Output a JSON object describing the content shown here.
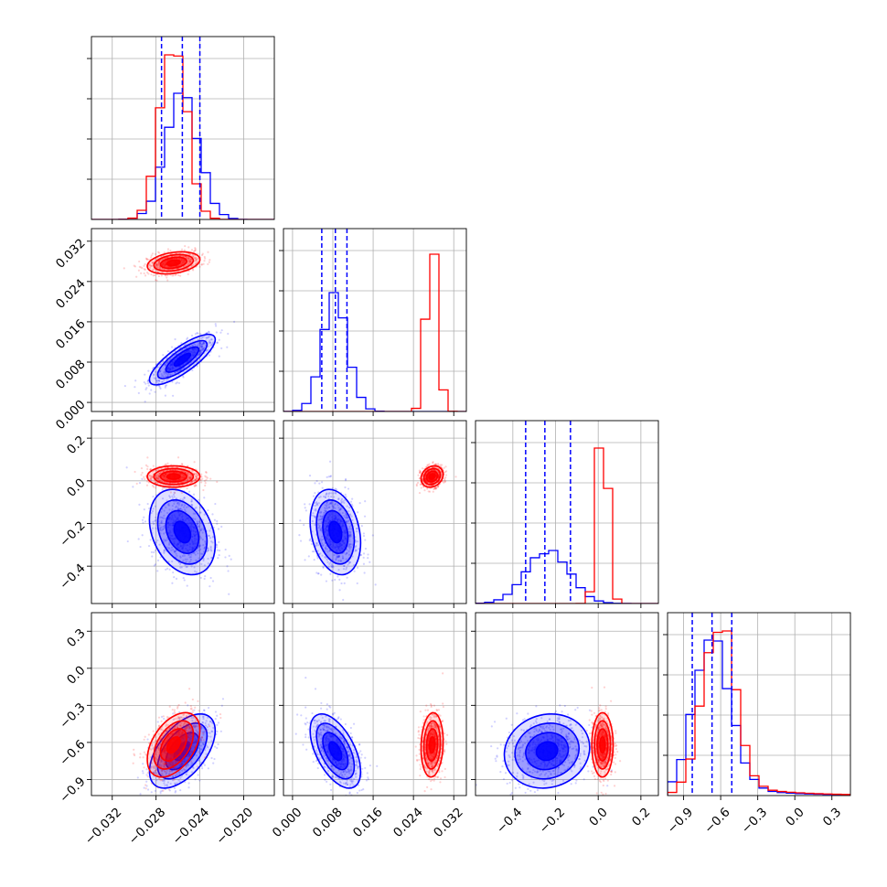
{
  "chart_data": {
    "type": "corner",
    "parameters": [
      {
        "ticks": [
          -0.032,
          -0.028,
          -0.024,
          -0.02
        ],
        "tick_labels": [
          "−0.032",
          "−0.028",
          "−0.024",
          "−0.020"
        ],
        "range": [
          -0.0339,
          -0.0172
        ]
      },
      {
        "ticks": [
          0.0,
          0.008,
          0.016,
          0.024,
          0.032
        ],
        "tick_labels": [
          "0.000",
          "0.008",
          "0.016",
          "0.024",
          "0.032"
        ],
        "range": [
          -0.0018,
          0.0345
        ]
      },
      {
        "ticks": [
          -0.4,
          -0.2,
          0.0,
          0.2
        ],
        "tick_labels": [
          "−0.4",
          "−0.2",
          "0.0",
          "0.2"
        ],
        "range": [
          -0.575,
          0.282
        ]
      },
      {
        "ticks": [
          -0.9,
          -0.6,
          -0.3,
          0.0,
          0.3
        ],
        "tick_labels": [
          "−0.9",
          "−0.6",
          "−0.3",
          "0.0",
          "0.3"
        ],
        "range": [
          -1.03,
          0.45
        ]
      }
    ],
    "series": [
      {
        "color": "#0000ff",
        "means": [
          -0.0256,
          0.0085,
          -0.24,
          -0.67
        ],
        "sigmas": [
          0.0015,
          0.0025,
          0.1,
          0.15
        ],
        "quantiles": [
          [
            -0.0275,
            -0.0256,
            -0.024
          ],
          [
            0.0058,
            0.0085,
            0.0108
          ],
          [
            -0.34,
            -0.25,
            -0.13
          ],
          [
            -0.83,
            -0.67,
            -0.51
          ]
        ]
      },
      {
        "color": "#ff0000",
        "means": [
          -0.0264,
          0.0277,
          0.02,
          -0.62
        ],
        "sigmas": [
          0.0012,
          0.0011,
          0.025,
          0.13
        ]
      }
    ],
    "correlations": {
      "blue": {
        "1-0": 0.8,
        "2-0": -0.3,
        "2-1": -0.25,
        "3-0": 0.55,
        "3-1": -0.55,
        "3-2": 0.1
      },
      "red": {
        "1-0": 0.3,
        "2-0": 0.0,
        "2-1": 0.2,
        "3-0": 0.45,
        "3-1": 0.1,
        "3-2": 0.0
      }
    },
    "grid": true,
    "legend": null
  }
}
